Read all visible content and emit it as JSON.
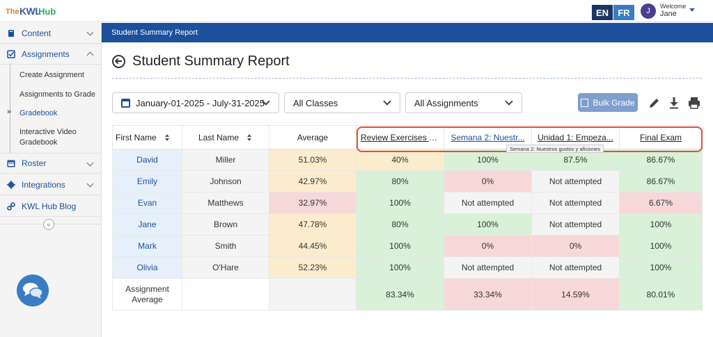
{
  "brand": {
    "the": "The",
    "kwl": "KWL",
    "hub": "Hub"
  },
  "topbar": {
    "lang_en": "EN",
    "lang_fr": "FR",
    "avatar_initial": "J",
    "welcome_label": "Welcome",
    "user_name": "Jane"
  },
  "sidebar": {
    "content": "Content",
    "assignments": "Assignments",
    "create_assignment": "Create Assignment",
    "assignments_to_grade": "Assignments to Grade",
    "gradebook": "Gradebook",
    "interactive_video_gradebook_1": "Interactive Video",
    "interactive_video_gradebook_2": "Gradebook",
    "roster": "Roster",
    "integrations": "Integrations",
    "blog": "KWL Hub Blog",
    "collapse_glyph": "«",
    "active_marker": "»"
  },
  "header_band": {
    "title": "Student Summary Report"
  },
  "page": {
    "title": "Student Summary Report"
  },
  "filters": {
    "date_range": "January-01-2025 - July-31-2025",
    "classes": "All Classes",
    "assignments": "All Assignments"
  },
  "bulk_grade_label": "Bulk Grade",
  "table": {
    "headers": {
      "first_name": "First Name",
      "last_name": "Last Name",
      "average": "Average",
      "a1": "Review Exercises (l...",
      "a2": "Semana 2: Nuestr...",
      "a3": "Unidad 1: Empeza...",
      "a4": "Final Exam"
    },
    "tooltip": "Semana 2: Nuestros gustos y aficiones",
    "rows": [
      {
        "first": "David",
        "last": "Miller",
        "average": "51.03%",
        "a1": "40%",
        "a2": "100%",
        "a3": "87.5%",
        "a4": "86.67%"
      },
      {
        "first": "Emily",
        "last": "Johnson",
        "average": "42.97%",
        "a1": "80%",
        "a2": "0%",
        "a3": "Not attempted",
        "a4": "86.67%"
      },
      {
        "first": "Evan",
        "last": "Matthews",
        "average": "32.97%",
        "a1": "100%",
        "a2": "Not attempted",
        "a3": "Not attempted",
        "a4": "6.67%"
      },
      {
        "first": "Jane",
        "last": "Brown",
        "average": "47.78%",
        "a1": "80%",
        "a2": "100%",
        "a3": "Not attempted",
        "a4": "100%"
      },
      {
        "first": "Mark",
        "last": "Smith",
        "average": "44.45%",
        "a1": "100%",
        "a2": "0%",
        "a3": "0%",
        "a4": "100%"
      },
      {
        "first": "Olivia",
        "last": "O'Hare",
        "average": "52.23%",
        "a1": "100%",
        "a2": "Not attempted",
        "a3": "Not attempted",
        "a4": "100%"
      }
    ],
    "avg_label_1": "Assignment",
    "avg_label_2": "Average",
    "avg": {
      "a1": "83.34%",
      "a2": "33.34%",
      "a3": "14.59%",
      "a4": "80.01%"
    }
  },
  "colors": {
    "brand_blue": "#1c4f9c",
    "highlight": "#e74c3c"
  }
}
